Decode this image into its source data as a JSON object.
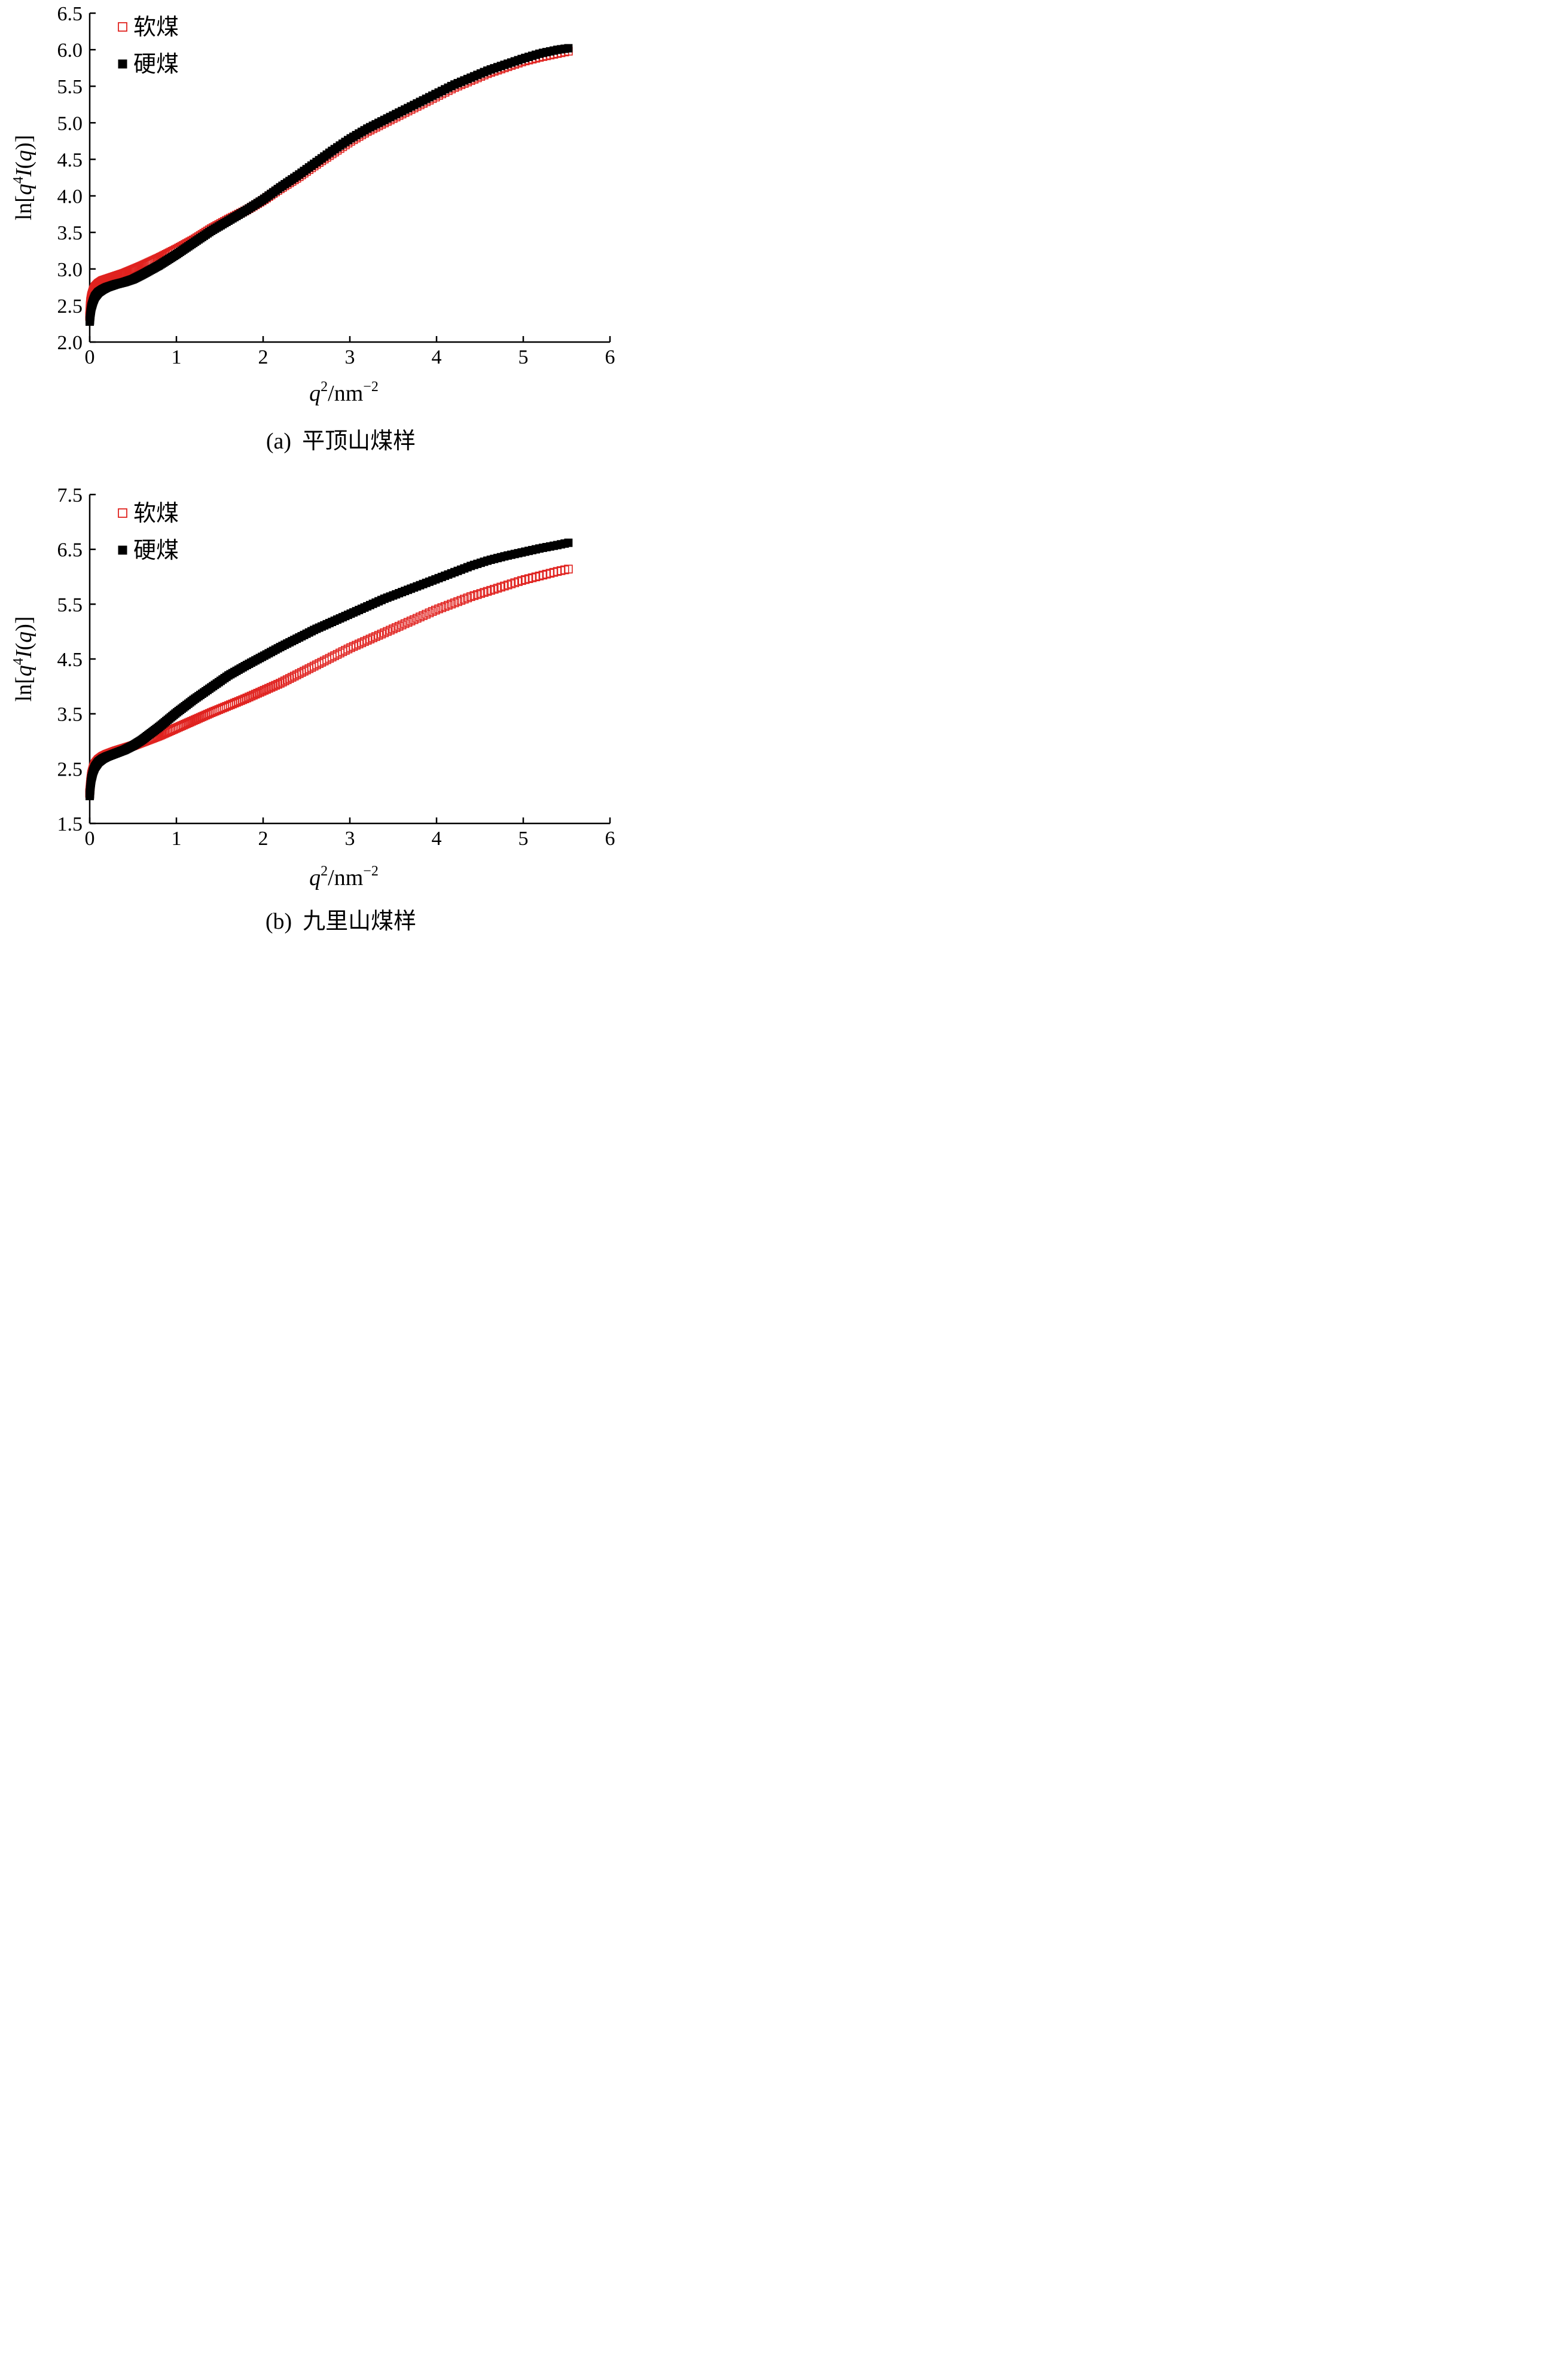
{
  "chart_data": [
    {
      "type": "scatter",
      "panel_label": "(a)",
      "caption": "平顶山煤样",
      "xlabel": {
        "base": "q",
        "exp": "2",
        "unit": "/nm",
        "unit_exp": "−2"
      },
      "ylabel": {
        "prefix": "ln[",
        "q": "q",
        "exp": "4",
        "I": "I",
        "arg": "(q)",
        "suffix": "]"
      },
      "xlim": [
        0,
        6
      ],
      "ylim": [
        2.0,
        6.5
      ],
      "xticks": [
        0,
        1,
        2,
        3,
        4,
        5,
        6
      ],
      "yticks": [
        2.0,
        2.5,
        3.0,
        3.5,
        4.0,
        4.5,
        5.0,
        5.5,
        6.0,
        6.5
      ],
      "y_decimals": 1,
      "grid": false,
      "legend_position": "top-left",
      "series": [
        {
          "name": "软煤",
          "marker": "open-square",
          "color": "#e0221f",
          "x": [
            0,
            0.005,
            0.01,
            0.02,
            0.04,
            0.06,
            0.1,
            0.15,
            0.2,
            0.3,
            0.4,
            0.5,
            0.6,
            0.8,
            1.0,
            1.2,
            1.4,
            1.6,
            1.8,
            2.0,
            2.2,
            2.4,
            2.6,
            2.8,
            3.0,
            3.2,
            3.4,
            3.6,
            3.8,
            4.0,
            4.2,
            4.4,
            4.6,
            4.8,
            5.0,
            5.2,
            5.4,
            5.52
          ],
          "y": [
            2.35,
            2.48,
            2.55,
            2.62,
            2.7,
            2.75,
            2.8,
            2.84,
            2.86,
            2.9,
            2.94,
            2.99,
            3.04,
            3.15,
            3.27,
            3.4,
            3.55,
            3.68,
            3.8,
            3.94,
            4.1,
            4.25,
            4.42,
            4.58,
            4.74,
            4.88,
            5.0,
            5.12,
            5.24,
            5.36,
            5.48,
            5.58,
            5.68,
            5.76,
            5.84,
            5.9,
            5.95,
            5.98
          ]
        },
        {
          "name": "硬煤",
          "marker": "filled-square",
          "color": "#000000",
          "x": [
            0,
            0.005,
            0.01,
            0.02,
            0.04,
            0.06,
            0.1,
            0.15,
            0.2,
            0.3,
            0.4,
            0.5,
            0.6,
            0.8,
            1.0,
            1.2,
            1.4,
            1.6,
            1.8,
            2.0,
            2.2,
            2.4,
            2.6,
            2.8,
            3.0,
            3.2,
            3.4,
            3.6,
            3.8,
            4.0,
            4.2,
            4.4,
            4.6,
            4.8,
            5.0,
            5.2,
            5.4,
            5.52
          ],
          "y": [
            2.28,
            2.34,
            2.4,
            2.48,
            2.56,
            2.62,
            2.68,
            2.72,
            2.75,
            2.79,
            2.82,
            2.86,
            2.92,
            3.05,
            3.2,
            3.36,
            3.52,
            3.66,
            3.8,
            3.95,
            4.12,
            4.28,
            4.45,
            4.62,
            4.78,
            4.92,
            5.04,
            5.16,
            5.28,
            5.4,
            5.52,
            5.62,
            5.72,
            5.8,
            5.88,
            5.95,
            6.0,
            6.02
          ]
        }
      ]
    },
    {
      "type": "scatter",
      "panel_label": "(b)",
      "caption": "九里山煤样",
      "xlabel": {
        "base": "q",
        "exp": "2",
        "unit": "/nm",
        "unit_exp": "−2"
      },
      "ylabel": {
        "prefix": "ln[",
        "q": "q",
        "exp": "4",
        "I": "I",
        "arg": "(q)",
        "suffix": "]"
      },
      "xlim": [
        0,
        6
      ],
      "ylim": [
        1.5,
        7.5
      ],
      "xticks": [
        0,
        1,
        2,
        3,
        4,
        5,
        6
      ],
      "yticks": [
        1.5,
        2.5,
        3.5,
        4.5,
        5.5,
        6.5,
        7.5
      ],
      "y_decimals": 1,
      "grid": false,
      "legend_position": "top-left",
      "series": [
        {
          "name": "软煤",
          "marker": "open-square",
          "color": "#e0221f",
          "x": [
            0,
            0.005,
            0.01,
            0.02,
            0.04,
            0.06,
            0.1,
            0.15,
            0.2,
            0.3,
            0.4,
            0.5,
            0.6,
            0.8,
            1.0,
            1.2,
            1.4,
            1.6,
            1.8,
            2.0,
            2.2,
            2.4,
            2.6,
            2.8,
            3.0,
            3.2,
            3.4,
            3.6,
            3.8,
            4.0,
            4.2,
            4.4,
            4.6,
            4.8,
            5.0,
            5.2,
            5.4,
            5.52
          ],
          "y": [
            2.05,
            2.15,
            2.25,
            2.38,
            2.5,
            2.58,
            2.66,
            2.72,
            2.76,
            2.82,
            2.87,
            2.92,
            2.98,
            3.1,
            3.24,
            3.38,
            3.52,
            3.65,
            3.78,
            3.92,
            4.06,
            4.22,
            4.38,
            4.54,
            4.7,
            4.84,
            4.98,
            5.12,
            5.26,
            5.4,
            5.52,
            5.64,
            5.74,
            5.84,
            5.94,
            6.02,
            6.1,
            6.14
          ]
        },
        {
          "name": "硬煤",
          "marker": "filled-square",
          "color": "#000000",
          "x": [
            0,
            0.005,
            0.01,
            0.02,
            0.04,
            0.06,
            0.1,
            0.15,
            0.2,
            0.3,
            0.4,
            0.5,
            0.6,
            0.8,
            1.0,
            1.2,
            1.4,
            1.6,
            1.8,
            2.0,
            2.2,
            2.4,
            2.6,
            2.8,
            3.0,
            3.2,
            3.4,
            3.6,
            3.8,
            4.0,
            4.2,
            4.4,
            4.6,
            4.8,
            5.0,
            5.2,
            5.4,
            5.52
          ],
          "y": [
            2.0,
            2.1,
            2.2,
            2.32,
            2.45,
            2.53,
            2.62,
            2.68,
            2.72,
            2.78,
            2.84,
            2.92,
            3.02,
            3.26,
            3.52,
            3.76,
            3.98,
            4.2,
            4.38,
            4.55,
            4.72,
            4.88,
            5.04,
            5.18,
            5.32,
            5.46,
            5.6,
            5.72,
            5.84,
            5.96,
            6.08,
            6.2,
            6.3,
            6.38,
            6.45,
            6.52,
            6.58,
            6.62
          ]
        }
      ]
    }
  ]
}
